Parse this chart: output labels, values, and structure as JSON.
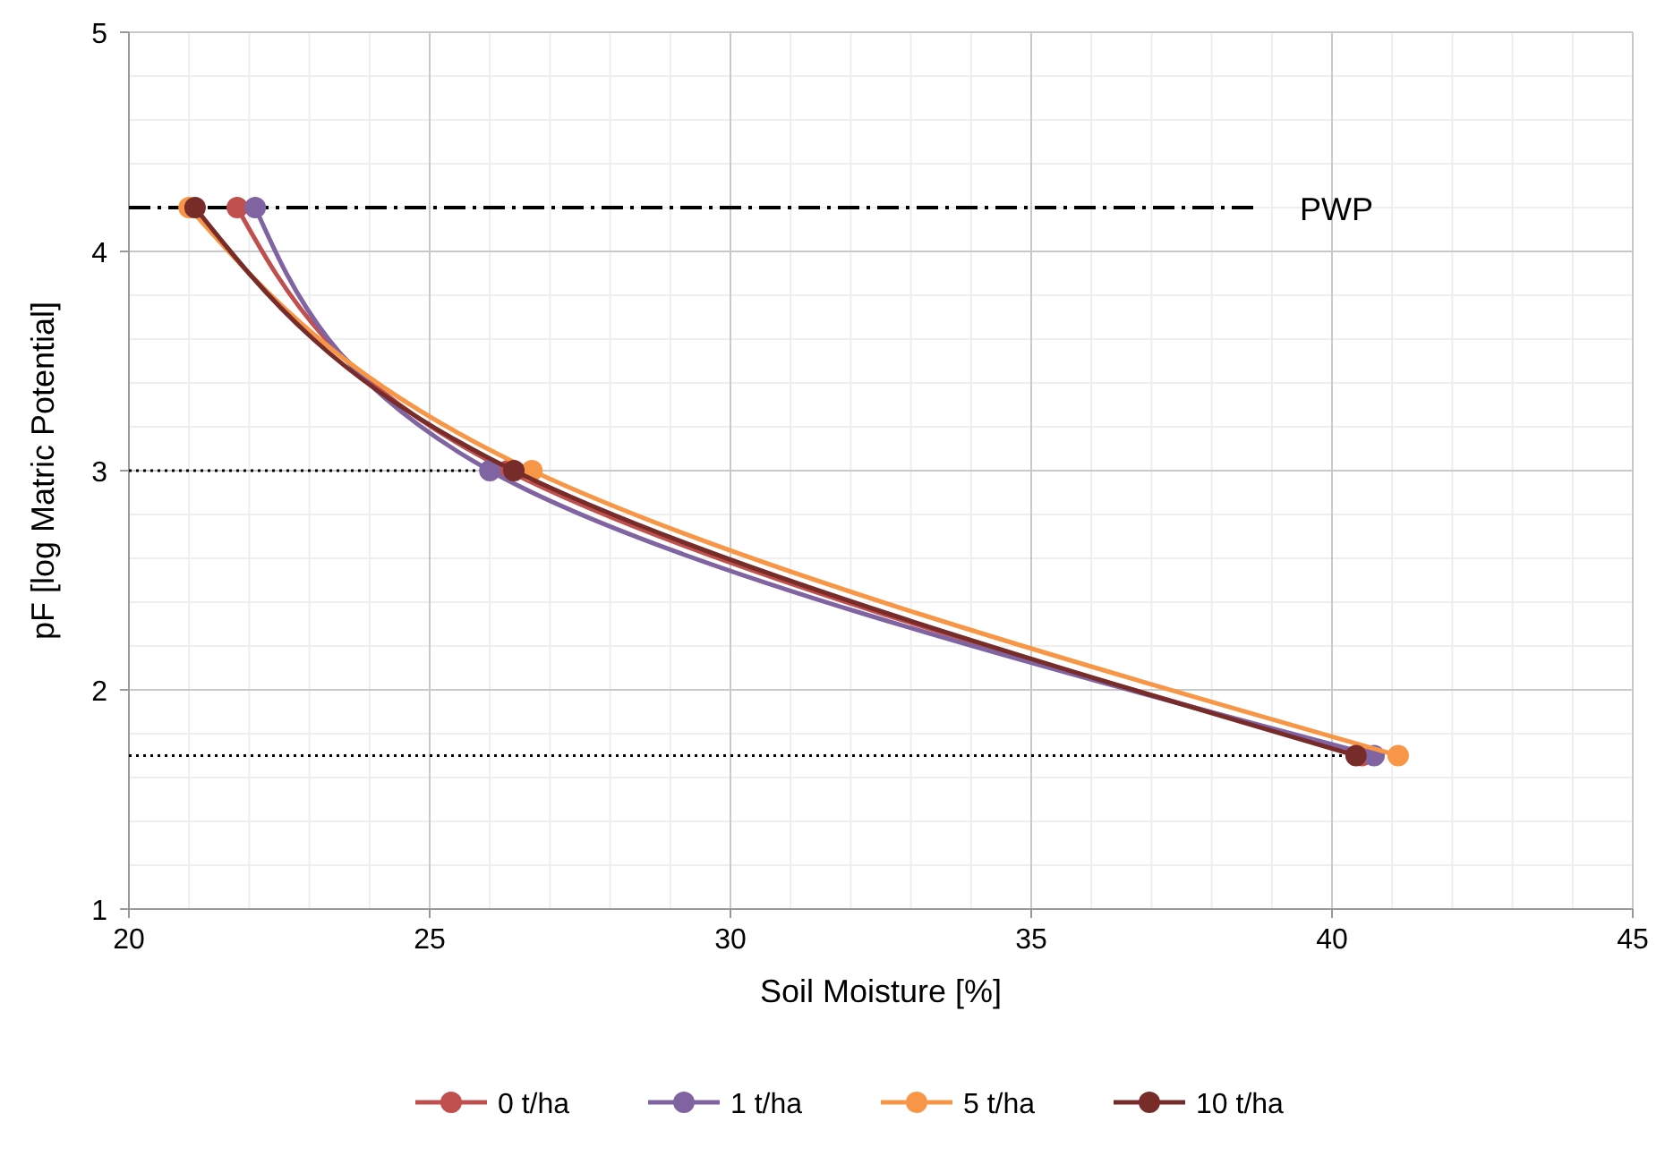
{
  "chart_data": {
    "type": "line",
    "xlabel": "Soil Moisture [%]",
    "ylabel": "pF [log Matric Potential]",
    "xlim": [
      20,
      45
    ],
    "xticks": [
      20,
      25,
      30,
      35,
      40,
      45
    ],
    "ylim": [
      1,
      5
    ],
    "yticks": [
      1,
      2,
      3,
      4,
      5
    ],
    "grid": true,
    "legend": "bottom",
    "marker": "circle",
    "line_style": "solid",
    "series": [
      {
        "name": "0 t/ha",
        "color": "#c0504d",
        "x": [
          21.8,
          26.3,
          40.5
        ],
        "values": [
          4.2,
          3,
          1.7
        ]
      },
      {
        "name": "1 t/ha",
        "color": "#8064a2",
        "x": [
          22.1,
          26.0,
          40.7
        ],
        "values": [
          4.2,
          3,
          1.7
        ]
      },
      {
        "name": "5 t/ha",
        "color": "#f79646",
        "x": [
          21.0,
          26.7,
          41.1
        ],
        "values": [
          4.2,
          3,
          1.7
        ]
      },
      {
        "name": "10 t/ha",
        "color": "#772c2a",
        "x": [
          21.1,
          26.4,
          40.4
        ],
        "values": [
          4.2,
          3,
          1.7
        ]
      }
    ],
    "ref_lines": [
      {
        "axis": "y",
        "value": 4.2,
        "label": "PWP",
        "line_style": "dashed",
        "color": "#000000"
      },
      {
        "axis": "y",
        "value": 3,
        "label": null,
        "line_style": "dotted",
        "color": "#000000"
      },
      {
        "axis": "y",
        "value": 1.7,
        "label": null,
        "line_style": "dotted",
        "color": "#000000"
      }
    ]
  }
}
